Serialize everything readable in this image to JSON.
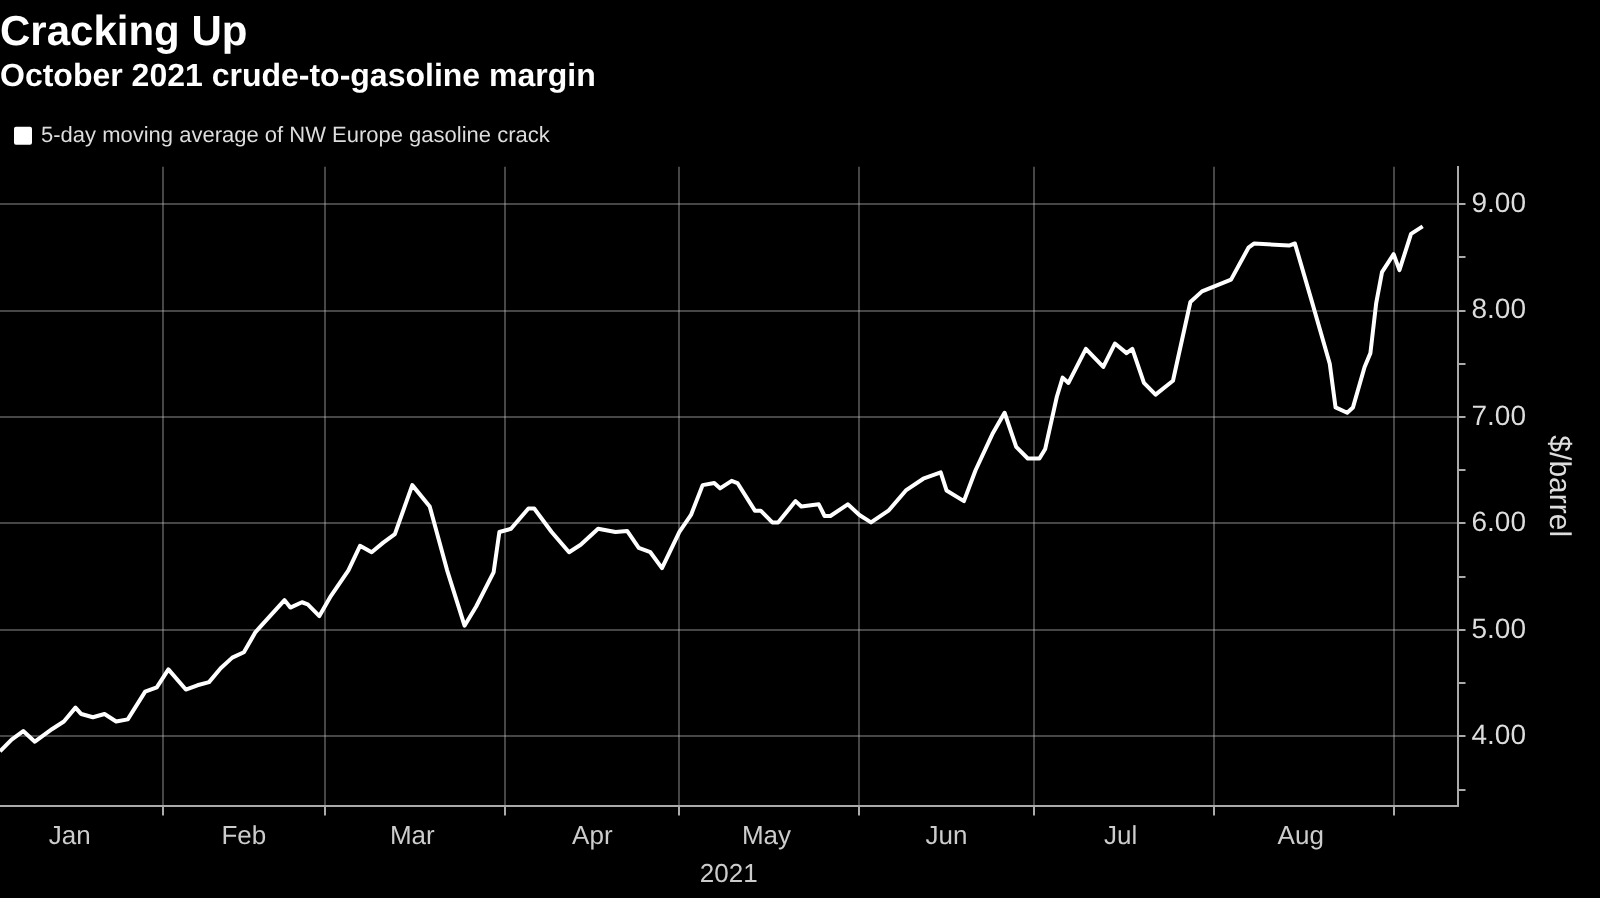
{
  "chart_data": {
    "type": "line",
    "title": "Cracking Up",
    "subtitle": "October 2021 crude-to-gasoline margin",
    "xlabel": "2021",
    "ylabel": "$/barrel",
    "x": [
      "2021-01-04",
      "2021-01-06",
      "2021-01-08",
      "2021-01-10",
      "2021-01-13",
      "2021-01-15",
      "2021-01-17",
      "2021-01-18",
      "2021-01-20",
      "2021-01-22",
      "2021-01-24",
      "2021-01-26",
      "2021-01-29",
      "2021-01-31",
      "2021-02-02",
      "2021-02-05",
      "2021-02-07",
      "2021-02-09",
      "2021-02-11",
      "2021-02-13",
      "2021-02-15",
      "2021-02-17",
      "2021-02-18",
      "2021-02-22",
      "2021-02-23",
      "2021-02-25",
      "2021-02-26",
      "2021-02-28",
      "2021-03-02",
      "2021-03-05",
      "2021-03-07",
      "2021-03-09",
      "2021-03-11",
      "2021-03-13",
      "2021-03-16",
      "2021-03-19",
      "2021-03-22",
      "2021-03-25",
      "2021-03-27",
      "2021-03-30",
      "2021-03-31",
      "2021-04-02",
      "2021-04-05",
      "2021-04-06",
      "2021-04-09",
      "2021-04-12",
      "2021-04-14",
      "2021-04-17",
      "2021-04-20",
      "2021-04-22",
      "2021-04-24",
      "2021-04-26",
      "2021-04-28",
      "2021-05-01",
      "2021-05-03",
      "2021-05-05",
      "2021-05-07",
      "2021-05-08",
      "2021-05-10",
      "2021-05-11",
      "2021-05-14",
      "2021-05-15",
      "2021-05-17",
      "2021-05-18",
      "2021-05-21",
      "2021-05-22",
      "2021-05-25",
      "2021-05-26",
      "2021-05-27",
      "2021-05-30",
      "2021-06-01",
      "2021-06-03",
      "2021-06-06",
      "2021-06-09",
      "2021-06-12",
      "2021-06-15",
      "2021-06-16",
      "2021-06-19",
      "2021-06-21",
      "2021-06-24",
      "2021-06-26",
      "2021-06-28",
      "2021-06-30",
      "2021-07-02",
      "2021-07-03",
      "2021-07-05",
      "2021-07-06",
      "2021-07-07",
      "2021-07-10",
      "2021-07-13",
      "2021-07-15",
      "2021-07-17",
      "2021-07-18",
      "2021-07-20",
      "2021-07-22",
      "2021-07-25",
      "2021-07-28",
      "2021-07-30",
      "2021-08-04",
      "2021-08-07",
      "2021-08-08",
      "2021-08-14",
      "2021-08-15",
      "2021-08-18",
      "2021-08-21",
      "2021-08-22",
      "2021-08-24",
      "2021-08-25",
      "2021-08-27",
      "2021-08-28",
      "2021-08-29",
      "2021-08-30",
      "2021-09-01",
      "2021-09-02",
      "2021-09-04",
      "2021-09-06"
    ],
    "series": [
      {
        "name": "5-day moving average of NW Europe gasoline crack",
        "color": "#ffffff",
        "values": [
          3.86,
          3.97,
          4.05,
          3.95,
          4.07,
          4.14,
          4.27,
          4.21,
          4.18,
          4.21,
          4.14,
          4.16,
          4.42,
          4.46,
          4.63,
          4.44,
          4.48,
          4.51,
          4.64,
          4.74,
          4.79,
          4.98,
          5.04,
          5.28,
          5.21,
          5.26,
          5.24,
          5.13,
          5.32,
          5.56,
          5.79,
          5.73,
          5.82,
          5.9,
          6.36,
          6.16,
          5.56,
          5.04,
          5.22,
          5.54,
          5.92,
          5.95,
          6.14,
          6.14,
          5.92,
          5.73,
          5.8,
          5.95,
          5.92,
          5.93,
          5.77,
          5.73,
          5.58,
          5.92,
          6.08,
          6.36,
          6.38,
          6.33,
          6.4,
          6.38,
          6.12,
          6.12,
          6.01,
          6.01,
          6.21,
          6.16,
          6.18,
          6.07,
          6.07,
          6.18,
          6.08,
          6.01,
          6.12,
          6.31,
          6.42,
          6.48,
          6.31,
          6.21,
          6.5,
          6.85,
          7.04,
          6.72,
          6.61,
          6.61,
          6.7,
          7.19,
          7.37,
          7.32,
          7.64,
          7.47,
          7.69,
          7.6,
          7.64,
          7.32,
          7.21,
          7.34,
          8.08,
          8.18,
          8.29,
          8.59,
          8.63,
          8.61,
          8.63,
          8.07,
          7.5,
          7.09,
          7.04,
          7.09,
          7.47,
          7.6,
          8.07,
          8.36,
          8.53,
          8.38,
          8.72,
          8.79
        ]
      }
    ],
    "xlim": [
      "2021-01-04",
      "2021-09-12"
    ],
    "xticks": [
      {
        "value": "2021-01-16",
        "label": "Jan"
      },
      {
        "value": "2021-02-01",
        "label": null
      },
      {
        "value": "2021-02-15",
        "label": "Feb"
      },
      {
        "value": "2021-03-01",
        "label": null
      },
      {
        "value": "2021-03-16",
        "label": "Mar"
      },
      {
        "value": "2021-04-01",
        "label": null
      },
      {
        "value": "2021-04-16",
        "label": "Apr"
      },
      {
        "value": "2021-05-01",
        "label": null
      },
      {
        "value": "2021-05-16",
        "label": "May"
      },
      {
        "value": "2021-06-01",
        "label": null
      },
      {
        "value": "2021-06-16",
        "label": "Jun"
      },
      {
        "value": "2021-07-01",
        "label": null
      },
      {
        "value": "2021-07-16",
        "label": "Jul"
      },
      {
        "value": "2021-08-01",
        "label": null
      },
      {
        "value": "2021-08-16",
        "label": "Aug"
      },
      {
        "value": "2021-09-01",
        "label": null
      }
    ],
    "ylim": [
      3.35,
      9.35
    ],
    "yticks": [
      {
        "value": 3.5,
        "label": null
      },
      {
        "value": 4,
        "label": "4.00"
      },
      {
        "value": 4.5,
        "label": null
      },
      {
        "value": 5,
        "label": "5.00"
      },
      {
        "value": 5.5,
        "label": null
      },
      {
        "value": 6,
        "label": "6.00"
      },
      {
        "value": 6.5,
        "label": null
      },
      {
        "value": 7,
        "label": "7.00"
      },
      {
        "value": 7.5,
        "label": null
      },
      {
        "value": 8,
        "label": "8.00"
      },
      {
        "value": 8.5,
        "label": null
      },
      {
        "value": 9,
        "label": "9.00"
      }
    ],
    "grid": true,
    "legend": "top left"
  }
}
